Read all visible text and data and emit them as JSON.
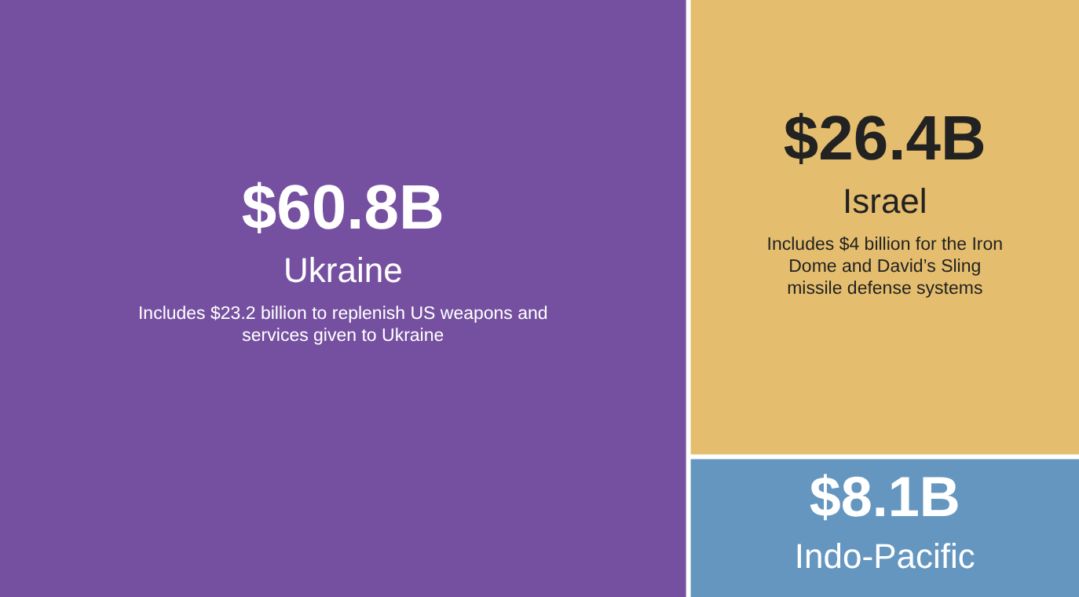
{
  "chart_data": {
    "type": "other",
    "categories": [
      "Ukraine",
      "Israel",
      "Indo-Pacific"
    ],
    "values": [
      60.8,
      26.4,
      8.1
    ],
    "value_labels": [
      "$60.8B",
      "$26.4B",
      "$8.1B"
    ],
    "colors": [
      "#7550a0",
      "#e4bd6e",
      "#6496c0"
    ],
    "annotations": [
      "Includes $23.2 billion to replenish US weapons and services given to Ukraine",
      "Includes $4 billion for the Iron Dome and David’s Sling missile defense systems"
    ]
  }
}
